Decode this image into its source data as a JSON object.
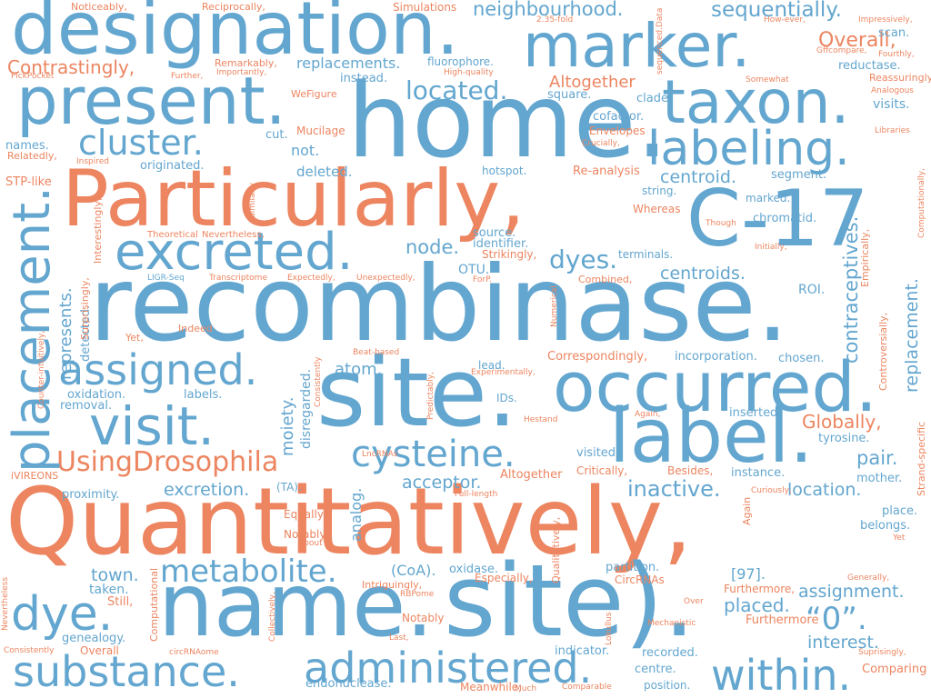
{
  "colors": {
    "blue": "#63a6cf",
    "orange": "#ec8560",
    "background": "#ffffff"
  },
  "words": {
    "designation": "designation.",
    "marker": "marker.",
    "present": "present.",
    "home": "home.",
    "taxon": "taxon.",
    "labeling": "labeling.",
    "cluster": "cluster.",
    "particularly": "Particularly,",
    "c17": "C-17",
    "excreted": "excreted.",
    "recombinase": "recombinase.",
    "placement": "placement.",
    "assigned": "assigned.",
    "site_center": "site.",
    "occurred": "occurred.",
    "visit": "visit.",
    "label": "label.",
    "cysteine": "cysteine.",
    "using_drosophila": "UsingDrosophila",
    "quantitatively": "Quantitatively,",
    "name": "name.",
    "site_bottom": "site).",
    "metabolite": "metabolite.",
    "dye": "dye.",
    "substance": "substance.",
    "administered": "administered.",
    "within": "within.",
    "o_quote": "“0”.",
    "overall": "Overall,",
    "contrastingly": "Contrastingly,",
    "neighbourhood": "neighbourhood.",
    "sequentially": "sequentially.",
    "located": "located.",
    "replacements": "replacements.",
    "altogether_top": "Altogether",
    "centroid": "centroid.",
    "dyes": "dyes.",
    "centroids": "centroids.",
    "node": "node.",
    "globally": "Globally,",
    "pair": "pair.",
    "inactive": "inactive.",
    "location": "location.",
    "excretion": "excretion.",
    "acceptor": "acceptor.",
    "atom": "atom.",
    "interest": "interest.",
    "assignment": "assignment.",
    "placed": "placed.",
    "town": "town.",
    "coa": "(CoA).",
    "ref97": "[97].",
    "contraceptives": "contraceptives.",
    "replacement": "replacement.",
    "moiety": "moiety.",
    "fluorophore": "fluorophore.",
    "scan": "scan.",
    "reductase": "reductase.",
    "visits": "visits.",
    "not": "not.",
    "deleted": "deleted.",
    "hotspot": "hotspot.",
    "re_analysis": "Re-analysis",
    "segment": "segment.",
    "string": "string.",
    "marked": "marked.",
    "chromatid": "chromatid.",
    "cofactor": "cofactor.",
    "clade": "clade.",
    "square": "square.",
    "instead": "instead.",
    "cut": "cut.",
    "mucilage": "Mucilage",
    "envelopes": "Envelopes",
    "originated": "originated.",
    "names": "names.",
    "stp_like": "STP-like",
    "source": "source.",
    "identifier": "identifier.",
    "strikingly": "Strikingly,",
    "otu": "OTU.",
    "terminals": "terminals.",
    "roi": "ROI.",
    "whereas": "Whereas",
    "lead": "lead.",
    "chosen": "chosen.",
    "correspondingly": "Correspondingly,",
    "incorporation": "incorporation.",
    "ids": "IDs.",
    "inserted": "inserted.",
    "tyrosine": "tyrosine.",
    "mother": "mother.",
    "place": "place.",
    "belongs": "belongs.",
    "visited": "visited.",
    "critically": "Critically,",
    "besides": "Besides,",
    "instance": "instance.",
    "altogether_mid": "Altogether",
    "proximity": "proximity.",
    "ta": "(TA).",
    "oxidation": "oxidation.",
    "removal": "removal.",
    "labels": "labels.",
    "equally": "Equally,",
    "notably_mid": "Notably,",
    "analog": "analog.",
    "oxidase": "oxidase.",
    "especially": "Especially,",
    "partition": "partition.",
    "circrnas": "CircRNAs",
    "furthermore_a": "Furthermore,",
    "furthermore_b": "Furthermore",
    "taken": "taken.",
    "still": "Still,",
    "genealogy": "genealogy.",
    "overall_small": "Overall",
    "indicator": "indicator.",
    "recorded": "recorded.",
    "centre": "centre.",
    "position": "position.",
    "comparing": "Comparing",
    "endonuclease": "endonuclease.",
    "meanwhile": "Meanwhile,",
    "notably_low": "Notably",
    "intriguingly": "Intriguingly,",
    "noticeably": "Noticeably,",
    "reciprocally": "Reciprocally,",
    "simulations": "Simulations",
    "remarkably": "Remarkably,",
    "importantly": "Importantly,",
    "further": "Further,",
    "pickpocket": "PickPocket",
    "wefigure": "WeFigure",
    "relatedly": "Relatedly,",
    "inspired": "Inspired",
    "crucially": "Crucially,",
    "theoretical": "Theoretical",
    "nevertheless_a": "Nevertheless,",
    "indeed": "Indeed",
    "yet_a": "Yet,",
    "ligr_seq": "LIGR-Seq",
    "transcriptome": "Transcriptome",
    "expectedly": "Expectedly,",
    "unexpectedly": "Unexpectedly,",
    "combined": "Combined,",
    "forp": "ForP.",
    "high_quality": "High-quality",
    "fold": "2.35-fold",
    "sequenced_data": "sequenced.Data",
    "however": "How-ever,",
    "impressively": "Impressively,",
    "gffcompare": "Gffcompare,",
    "fourthly": "Fourthly,",
    "reassuringly": "Reassuringly,",
    "somewhat": "Somewhat",
    "analogous": "Analogous",
    "libraries": "Libraries",
    "though": "Though",
    "initially": "Initially,",
    "empirically": "Empirically,",
    "computationally": "Computationally,",
    "controversially": "Controversially,",
    "strand_specific": "Strand-specific",
    "curiously": "Curiously,",
    "again_a": "Again,",
    "again_b": "Again",
    "yet_b": "Yet",
    "generally": "Generally,",
    "over": "Over",
    "mechanistic": "Mechanistic",
    "suprisingly": "Suprisingly,",
    "comparable": "Comparable",
    "much": "Much",
    "last": "Last,",
    "circrnaome": "circRNAome",
    "consistently": "Consistently",
    "rbpome": "RBPome",
    "lokullus": "Lokullus",
    "lncrnas": "LncRNAs",
    "beat_based": "Beat-based",
    "experimentally": "Experimentally,",
    "hestand": "Hestand",
    "full_length": "Full-length",
    "about": "About",
    "ivireons": "iVIREONS",
    "predictably": "Predictably,",
    "numerical": "Numerical",
    "qualitatively": "Qualitatively,",
    "computational": "Computational",
    "collectively": "Collectively,",
    "nevertheless_b": "Nevertheless",
    "similarly": "Similarly",
    "counter_intuitively": "Counter-intuitively,",
    "surprisingly": "Surprisingly,",
    "interestingly": "Interestingly,",
    "disregarded": "disregarded.",
    "detected": "detected.",
    "represents": "represents."
  }
}
